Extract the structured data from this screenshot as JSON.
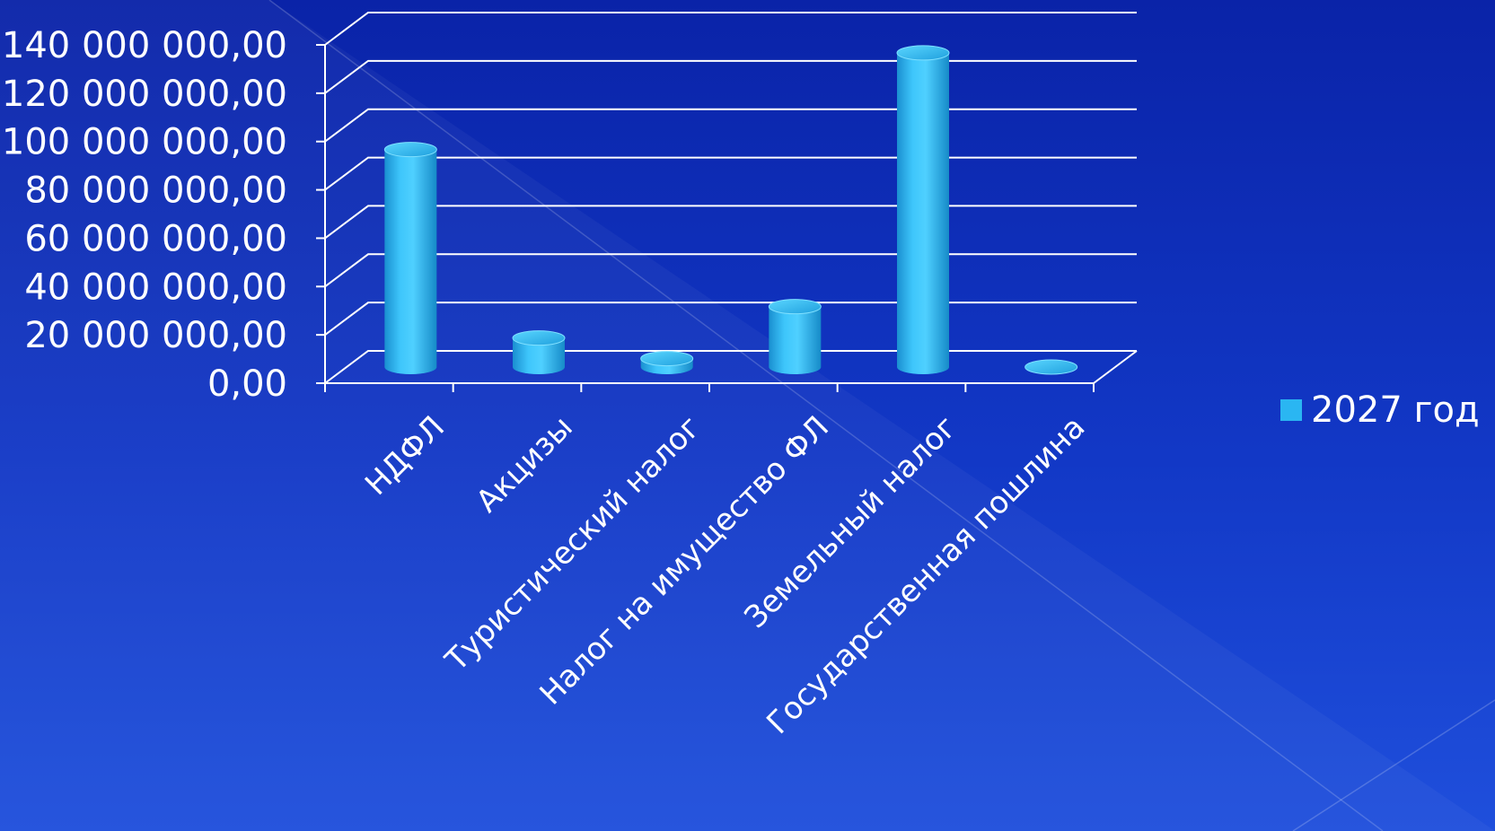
{
  "chart_data": {
    "type": "bar",
    "style": "3d-cylinder",
    "categories": [
      "НДФЛ",
      "Акцизы",
      "Туристический налог",
      "Налог на имущество ФЛ",
      "Земельный налог",
      "Государственная пошлина"
    ],
    "series": [
      {
        "name": "2027 год",
        "values": [
          90000000,
          12000000,
          3500000,
          25000000,
          130000000,
          0
        ],
        "color": "#2ab6f2"
      }
    ],
    "ylim": [
      0,
      140000000
    ],
    "yticks": [
      0,
      20000000,
      40000000,
      60000000,
      80000000,
      100000000,
      120000000,
      140000000
    ],
    "ytick_labels": [
      "0,00",
      "20 000 000,00",
      "40 000 000,00",
      "60 000 000,00",
      "80 000 000,00",
      "100 000 000,00",
      "120 000 000,00",
      "140 000 000,00"
    ],
    "grid": true,
    "legend_position": "right",
    "title": "",
    "xlabel": "",
    "ylabel": ""
  },
  "colors": {
    "background_top": "#0a23a8",
    "background_bottom": "#1f4fdc",
    "grid": "#ffffff",
    "bar": "#2ab6f2"
  }
}
